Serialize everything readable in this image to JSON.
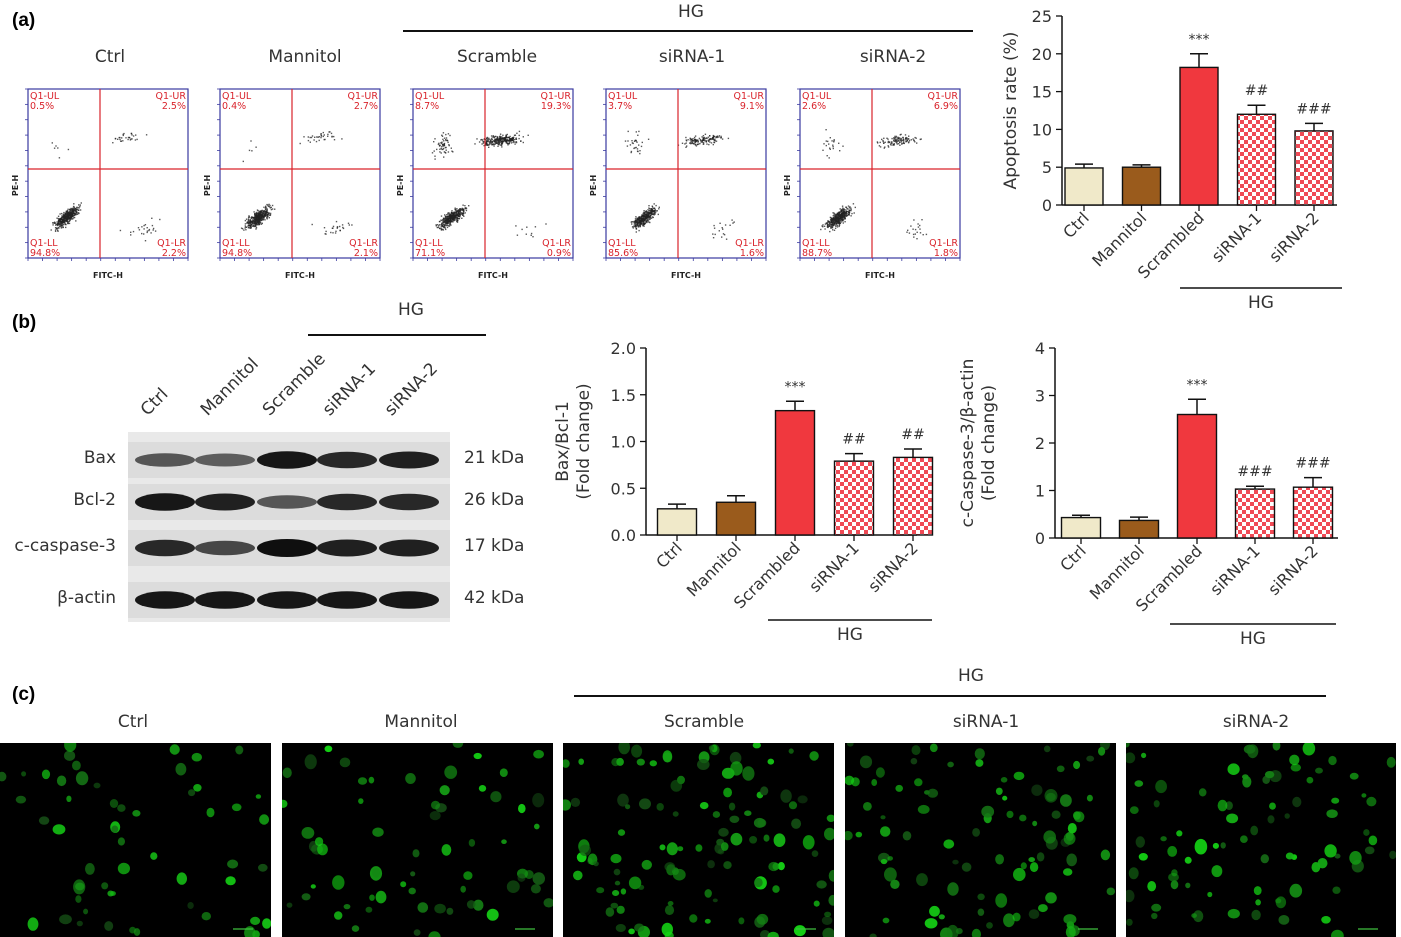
{
  "panels": {
    "a": {
      "label": "(a)",
      "hg_label": "HG",
      "flow_titles": [
        "Ctrl",
        "Mannitol",
        "Scramble",
        "siRNA-1",
        "siRNA-2"
      ],
      "flow_axis": {
        "x": "FITC-H",
        "y": "PE-H"
      },
      "flow_gates": {
        "ul": "Q1-UL",
        "ur": "Q1-UR",
        "ll": "Q1-LL",
        "lr": "Q1-LR"
      },
      "flow_quadrants": [
        {
          "ul": "0.5%",
          "ur": "2.5%",
          "ll": "94.8%",
          "lr": "2.2%"
        },
        {
          "ul": "0.4%",
          "ur": "2.7%",
          "ll": "94.8%",
          "lr": "2.1%"
        },
        {
          "ul": "8.7%",
          "ur": "19.3%",
          "ll": "71.1%",
          "lr": "0.9%"
        },
        {
          "ul": "3.7%",
          "ur": "9.1%",
          "ll": "85.6%",
          "lr": "1.6%"
        },
        {
          "ul": "2.6%",
          "ur": "6.9%",
          "ll": "88.7%",
          "lr": "1.8%"
        }
      ]
    },
    "b": {
      "label": "(b)",
      "hg_label": "HG",
      "lanes": [
        "Ctrl",
        "Mannitol",
        "Scramble",
        "siRNA-1",
        "siRNA-2"
      ],
      "bands": [
        {
          "name": "Bax",
          "kda": "21 kDa"
        },
        {
          "name": "Bcl-2",
          "kda": "26 kDa"
        },
        {
          "name": "c-caspase-3",
          "kda": "17 kDa"
        },
        {
          "name": "β-actin",
          "kda": "42 kDa"
        }
      ]
    },
    "c": {
      "label": "(c)",
      "hg_label": "HG",
      "titles": [
        "Ctrl",
        "Mannitol",
        "Scramble",
        "siRNA-1",
        "siRNA-2"
      ]
    }
  },
  "colors": {
    "ctrl": "#f0e9c9",
    "mannitol": "#9a5b1c",
    "scrambled": "#f0383e",
    "sirna_check": "#f04a55",
    "gate": "#d9232b"
  },
  "chart_data": [
    {
      "type": "bar",
      "categories": [
        "Ctrl",
        "Mannitol",
        "Scrambled",
        "siRNA-1",
        "siRNA-2"
      ],
      "values": [
        4.9,
        5.0,
        18.2,
        12.0,
        9.8
      ],
      "errors": [
        0.5,
        0.3,
        1.8,
        1.2,
        1.0
      ],
      "annotations": [
        "",
        "",
        "***",
        "##",
        "###"
      ],
      "ylabel": "Apoptosis rate (%)",
      "ylim": [
        0,
        25
      ],
      "yticks": [
        0,
        5,
        10,
        15,
        20,
        25
      ],
      "group_label": "HG"
    },
    {
      "type": "bar",
      "categories": [
        "Ctrl",
        "Mannitol",
        "Scrambled",
        "siRNA-1",
        "siRNA-2"
      ],
      "values": [
        0.28,
        0.35,
        1.33,
        0.79,
        0.83
      ],
      "errors": [
        0.05,
        0.07,
        0.1,
        0.08,
        0.09
      ],
      "annotations": [
        "",
        "",
        "***",
        "##",
        "##"
      ],
      "ylabel": "Bax/Bcl-1",
      "ylabel2": "(Fold change)",
      "ylim": [
        0,
        2.0
      ],
      "yticks": [
        "0.0",
        "0.5",
        "1.0",
        "1.5",
        "2.0"
      ],
      "group_label": "HG"
    },
    {
      "type": "bar",
      "categories": [
        "Ctrl",
        "Mannitol",
        "Scrambled",
        "siRNA-1",
        "siRNA-2"
      ],
      "values": [
        0.43,
        0.37,
        2.6,
        1.03,
        1.07
      ],
      "errors": [
        0.05,
        0.07,
        0.32,
        0.06,
        0.2
      ],
      "annotations": [
        "",
        "",
        "***",
        "###",
        "###"
      ],
      "ylabel": "c-Caspase-3/β-actin",
      "ylabel2": "(Fold change)",
      "ylim": [
        0,
        4
      ],
      "yticks": [
        "0",
        "1",
        "2",
        "3",
        "4"
      ],
      "group_label": "HG"
    }
  ]
}
